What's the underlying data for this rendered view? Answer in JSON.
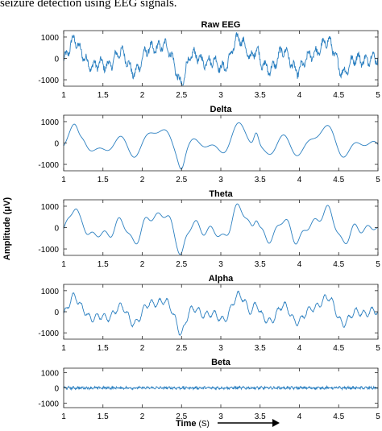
{
  "caption": "seizure detection using EEG signals.",
  "chart_data": [
    {
      "type": "line",
      "title": "Raw EEG",
      "x": [
        1,
        5
      ],
      "xlim": [
        1,
        5
      ],
      "ylim": [
        -1300,
        1300
      ],
      "yticks": [
        1000,
        0,
        -1000
      ],
      "xticks": [
        1,
        1.5,
        2,
        2.5,
        3,
        3.5,
        4,
        4.5,
        5
      ],
      "color": "#2a7fc0",
      "grid": false,
      "signal": "raw eeg, ~200 Hz sampled, amplitude range approx -1000 to 1100 µV"
    },
    {
      "type": "line",
      "title": "Delta",
      "xlim": [
        1,
        5
      ],
      "ylim": [
        -1300,
        1300
      ],
      "yticks": [
        1000,
        0,
        -1000
      ],
      "xticks": [
        1,
        1.5,
        2,
        2.5,
        3,
        3.5,
        4,
        4.5,
        5
      ],
      "color": "#2a7fc0",
      "grid": false,
      "signal": "smooth low-frequency band, amplitude approx -900 to 1000 µV"
    },
    {
      "type": "line",
      "title": "Theta",
      "xlim": [
        1,
        5
      ],
      "ylim": [
        -1300,
        1300
      ],
      "yticks": [
        1000,
        0,
        -1000
      ],
      "xticks": [
        1,
        1.5,
        2,
        2.5,
        3,
        3.5,
        4,
        4.5,
        5
      ],
      "color": "#2a7fc0",
      "grid": false,
      "signal": "theta band, amplitude approx -1000 to 1200 µV"
    },
    {
      "type": "line",
      "title": "Alpha",
      "xlim": [
        1,
        5
      ],
      "ylim": [
        -1300,
        1300
      ],
      "yticks": [
        1000,
        0,
        -1000
      ],
      "xticks": [
        1,
        1.5,
        2,
        2.5,
        3,
        3.5,
        4,
        4.5,
        5
      ],
      "color": "#2a7fc0",
      "grid": false,
      "signal": "alpha band, amplitude approx -900 to 1000 µV"
    },
    {
      "type": "line",
      "title": "Beta",
      "xlim": [
        1,
        5
      ],
      "ylim": [
        -1300,
        1300
      ],
      "yticks": [
        1000,
        0,
        -1000
      ],
      "xticks": [
        1,
        1.5,
        2,
        2.5,
        3,
        3.5,
        4,
        4.5,
        5
      ],
      "color": "#2a7fc0",
      "grid": false,
      "signal": "beta band, small amplitude approx -100 to 100 µV"
    }
  ],
  "ylabel": "Amplitude (μV)",
  "xlabel": "Time",
  "xlabel_unit": "(S)"
}
